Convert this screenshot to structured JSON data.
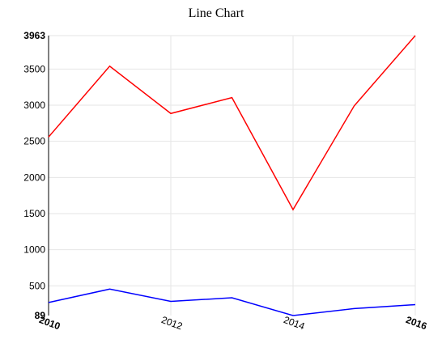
{
  "chart_data": {
    "type": "line",
    "title": "Line Chart",
    "xlabel": "",
    "ylabel": "",
    "x": [
      2010,
      2011,
      2012,
      2013,
      2014,
      2015,
      2016
    ],
    "xlim": [
      2010,
      2016
    ],
    "ylim": [
      89,
      3963
    ],
    "x_ticks": [
      {
        "value": 2010,
        "label": "2010",
        "bold": true
      },
      {
        "value": 2012,
        "label": "2012",
        "bold": false
      },
      {
        "value": 2014,
        "label": "2014",
        "bold": false
      },
      {
        "value": 2016,
        "label": "2016",
        "bold": true
      }
    ],
    "y_ticks": [
      {
        "value": 89,
        "label": "89",
        "bold": true
      },
      {
        "value": 500,
        "label": "500",
        "bold": false
      },
      {
        "value": 1000,
        "label": "1000",
        "bold": false
      },
      {
        "value": 1500,
        "label": "1500",
        "bold": false
      },
      {
        "value": 2000,
        "label": "2000",
        "bold": false
      },
      {
        "value": 2500,
        "label": "2500",
        "bold": false
      },
      {
        "value": 3000,
        "label": "3000",
        "bold": false
      },
      {
        "value": 3500,
        "label": "3500",
        "bold": false
      },
      {
        "value": 3963,
        "label": "3963",
        "bold": true
      }
    ],
    "grid": true,
    "series": [
      {
        "color": "#ff0000",
        "values": [
          2560,
          3540,
          2885,
          3105,
          1555,
          2990,
          3963
        ]
      },
      {
        "color": "#0000ff",
        "values": [
          270,
          455,
          285,
          335,
          89,
          185,
          240
        ]
      }
    ]
  }
}
